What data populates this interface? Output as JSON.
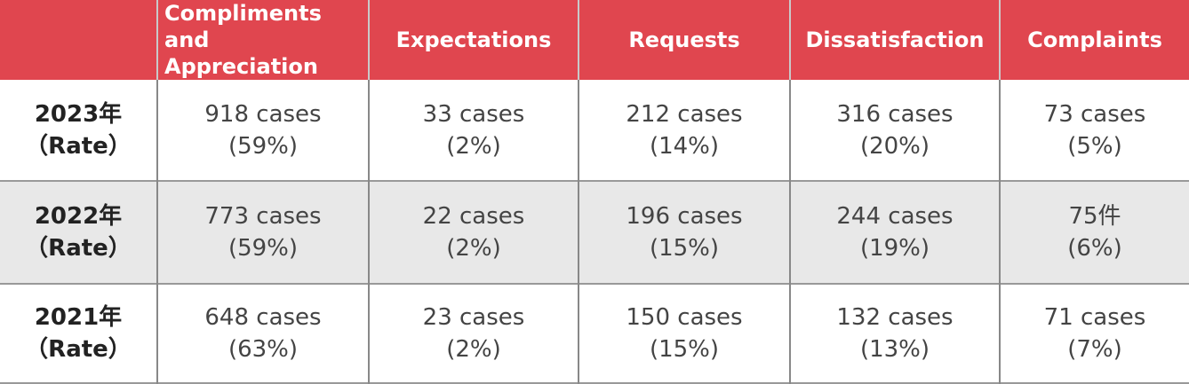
{
  "table": {
    "header": [
      "Compliments and Appreciation",
      "Expectations",
      "Requests",
      "Dissatisfaction",
      "Complaints"
    ],
    "rows": [
      {
        "label": [
          "2023年",
          "（Rate）"
        ],
        "cells": [
          [
            "918 cases",
            "(59%)"
          ],
          [
            "33 cases",
            "(2%)"
          ],
          [
            "212 cases",
            "(14%)"
          ],
          [
            "316 cases",
            "(20%)"
          ],
          [
            "73 cases",
            "(5%)"
          ]
        ]
      },
      {
        "label": [
          "2022年",
          "（Rate）"
        ],
        "cells": [
          [
            "773 cases",
            "(59%)"
          ],
          [
            "22 cases",
            "(2%)"
          ],
          [
            "196 cases",
            "(15%)"
          ],
          [
            "244 cases",
            "(19%)"
          ],
          [
            "75件",
            "(6%)"
          ]
        ]
      },
      {
        "label": [
          "2021年",
          "（Rate）"
        ],
        "cells": [
          [
            "648 cases",
            "(63%)"
          ],
          [
            "23 cases",
            "(2%)"
          ],
          [
            "150 cases",
            "(15%)"
          ],
          [
            "132 cases",
            "(13%)"
          ],
          [
            "71 cases",
            "(7%)"
          ]
        ]
      }
    ]
  }
}
